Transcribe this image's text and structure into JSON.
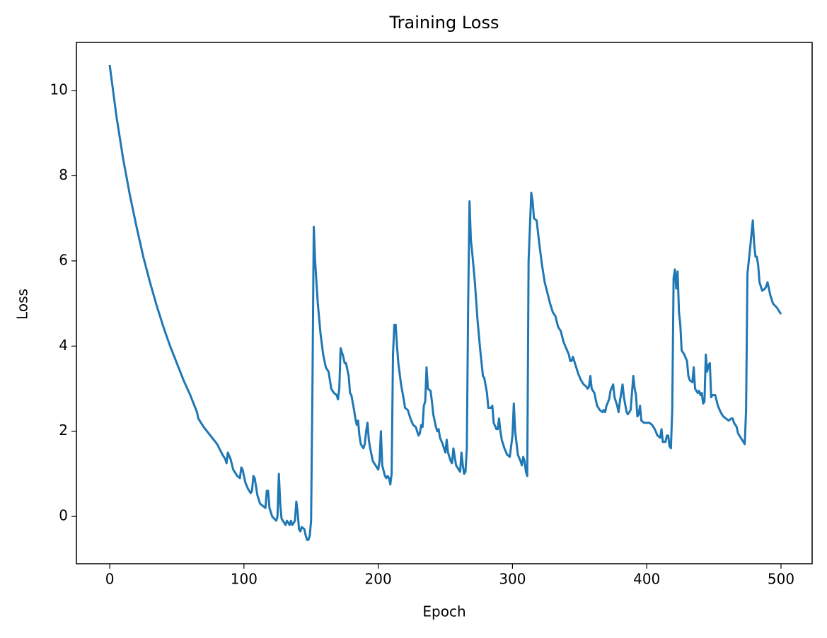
{
  "chart_data": {
    "type": "line",
    "title": "Training Loss",
    "x_label": "Epoch",
    "y_label": "Loss",
    "x": [
      0,
      5,
      10,
      15,
      20,
      25,
      30,
      35,
      40,
      45,
      50,
      55,
      60,
      65,
      66,
      70,
      75,
      80,
      84,
      86,
      87,
      88,
      90,
      92,
      95,
      97,
      98,
      99,
      101,
      103,
      105,
      106,
      107,
      108,
      110,
      112,
      114,
      116,
      117,
      118,
      119,
      121,
      124,
      125,
      126,
      127,
      128,
      130,
      131,
      132,
      133,
      134,
      135,
      136,
      137,
      138,
      139,
      140,
      141,
      142,
      143,
      145,
      146,
      147,
      148,
      149,
      150,
      151,
      152,
      153,
      155,
      157,
      159,
      161,
      163,
      165,
      167,
      169,
      170,
      171,
      172,
      174,
      175,
      176,
      178,
      179,
      180,
      182,
      183,
      184,
      185,
      186,
      187,
      189,
      190,
      191,
      192,
      193,
      194,
      196,
      198,
      200,
      201,
      202,
      203,
      205,
      206,
      207,
      208,
      209,
      210,
      211,
      212,
      213,
      214,
      215,
      217,
      219,
      220,
      222,
      224,
      226,
      228,
      229,
      230,
      231,
      232,
      233,
      234,
      235,
      236,
      237,
      239,
      240,
      241,
      243,
      244,
      245,
      246,
      248,
      250,
      251,
      252,
      254,
      255,
      256,
      257,
      258,
      260,
      261,
      262,
      263,
      264,
      265,
      266,
      267,
      268,
      269,
      270,
      272,
      274,
      276,
      278,
      279,
      281,
      282,
      284,
      285,
      286,
      288,
      289,
      290,
      291,
      292,
      294,
      296,
      298,
      300,
      301,
      302,
      304,
      306,
      307,
      308,
      309,
      310,
      311,
      312,
      314,
      315,
      316,
      318,
      320,
      322,
      324,
      326,
      328,
      330,
      332,
      334,
      336,
      338,
      340,
      342,
      343,
      344,
      345,
      347,
      349,
      351,
      353,
      355,
      356,
      357,
      358,
      359,
      361,
      363,
      365,
      367,
      368,
      369,
      370,
      372,
      373,
      375,
      376,
      378,
      379,
      380,
      382,
      383,
      385,
      386,
      388,
      389,
      390,
      391,
      392,
      393,
      394,
      395,
      396,
      398,
      400,
      402,
      404,
      406,
      408,
      410,
      411,
      412,
      414,
      415,
      416,
      417,
      418,
      419,
      420,
      421,
      422,
      423,
      424,
      425,
      426,
      428,
      430,
      431,
      432,
      434,
      435,
      436,
      438,
      439,
      440,
      441,
      442,
      443,
      444,
      445,
      446,
      447,
      448,
      449,
      451,
      453,
      455,
      457,
      459,
      461,
      463,
      464,
      465,
      467,
      468,
      470,
      472,
      473,
      474,
      475,
      477,
      479,
      480,
      481,
      482,
      483,
      484,
      486,
      488,
      489,
      490,
      492,
      494,
      497,
      500
    ],
    "series": [
      {
        "color": "#1f77b4",
        "values": [
          10.6,
          9.4,
          8.4,
          7.55,
          6.8,
          6.1,
          5.5,
          4.95,
          4.45,
          4.0,
          3.6,
          3.2,
          2.85,
          2.45,
          2.3,
          2.1,
          1.9,
          1.7,
          1.45,
          1.35,
          1.25,
          1.5,
          1.35,
          1.1,
          0.95,
          0.9,
          1.15,
          1.1,
          0.8,
          0.65,
          0.55,
          0.6,
          0.95,
          0.9,
          0.5,
          0.3,
          0.25,
          0.2,
          0.6,
          0.6,
          0.2,
          0.0,
          -0.1,
          0.0,
          1.0,
          0.3,
          -0.05,
          -0.15,
          -0.2,
          -0.1,
          -0.15,
          -0.2,
          -0.1,
          -0.2,
          -0.15,
          -0.1,
          0.35,
          0.1,
          -0.3,
          -0.35,
          -0.25,
          -0.3,
          -0.45,
          -0.55,
          -0.55,
          -0.45,
          -0.1,
          3.0,
          6.8,
          6.0,
          5.0,
          4.3,
          3.8,
          3.5,
          3.4,
          3.0,
          2.9,
          2.85,
          2.75,
          3.0,
          3.95,
          3.75,
          3.6,
          3.6,
          3.3,
          2.9,
          2.85,
          2.5,
          2.3,
          2.15,
          2.25,
          1.9,
          1.7,
          1.6,
          1.7,
          2.0,
          2.2,
          1.8,
          1.6,
          1.3,
          1.2,
          1.1,
          1.3,
          2.0,
          1.2,
          0.95,
          0.9,
          0.95,
          0.9,
          0.75,
          1.0,
          3.8,
          4.5,
          4.5,
          4.0,
          3.6,
          3.1,
          2.75,
          2.55,
          2.5,
          2.3,
          2.15,
          2.1,
          2.0,
          1.9,
          1.95,
          2.15,
          2.1,
          2.6,
          2.7,
          3.5,
          3.0,
          2.95,
          2.7,
          2.4,
          2.1,
          2.0,
          2.05,
          1.85,
          1.7,
          1.5,
          1.8,
          1.5,
          1.3,
          1.25,
          1.6,
          1.4,
          1.2,
          1.1,
          1.05,
          1.5,
          1.2,
          1.0,
          1.05,
          1.6,
          5.0,
          7.4,
          6.5,
          6.2,
          5.5,
          4.6,
          3.9,
          3.3,
          3.25,
          2.9,
          2.55,
          2.55,
          2.6,
          2.2,
          2.05,
          2.05,
          2.3,
          2.0,
          1.8,
          1.6,
          1.45,
          1.4,
          1.9,
          2.65,
          2.0,
          1.45,
          1.3,
          1.2,
          1.4,
          1.3,
          1.05,
          0.95,
          6.0,
          7.6,
          7.4,
          7.0,
          6.95,
          6.4,
          5.9,
          5.5,
          5.25,
          5.0,
          4.8,
          4.7,
          4.45,
          4.35,
          4.1,
          3.95,
          3.8,
          3.65,
          3.65,
          3.75,
          3.55,
          3.35,
          3.2,
          3.1,
          3.05,
          3.0,
          3.05,
          3.3,
          3.0,
          2.9,
          2.6,
          2.5,
          2.45,
          2.5,
          2.45,
          2.6,
          2.75,
          2.95,
          3.1,
          2.8,
          2.6,
          2.45,
          2.7,
          3.1,
          2.8,
          2.45,
          2.4,
          2.5,
          2.9,
          3.3,
          3.0,
          2.85,
          2.35,
          2.4,
          2.6,
          2.25,
          2.2,
          2.2,
          2.2,
          2.15,
          2.05,
          1.9,
          1.85,
          2.05,
          1.75,
          1.75,
          1.9,
          1.9,
          1.65,
          1.6,
          2.5,
          5.6,
          5.8,
          5.35,
          5.75,
          4.8,
          4.5,
          3.9,
          3.8,
          3.65,
          3.3,
          3.2,
          3.15,
          3.5,
          3.0,
          2.9,
          2.95,
          2.85,
          2.9,
          2.65,
          2.7,
          3.8,
          3.4,
          3.55,
          3.6,
          2.8,
          2.85,
          2.85,
          2.6,
          2.45,
          2.35,
          2.3,
          2.25,
          2.3,
          2.3,
          2.2,
          2.1,
          1.95,
          1.85,
          1.75,
          1.7,
          2.5,
          5.7,
          6.3,
          6.95,
          6.4,
          6.1,
          6.1,
          5.9,
          5.5,
          5.3,
          5.35,
          5.4,
          5.5,
          5.2,
          5.0,
          4.9,
          4.75
        ]
      }
    ],
    "xlim": [
      -24.8,
      523.2
    ],
    "ylim": [
      -1.11,
      11.13
    ],
    "xticks": [
      0,
      100,
      200,
      300,
      400,
      500
    ],
    "yticks": [
      0,
      2,
      4,
      6,
      8,
      10
    ],
    "grid": false
  }
}
